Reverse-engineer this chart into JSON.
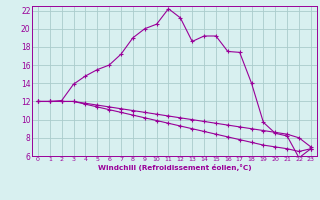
{
  "xlabel": "Windchill (Refroidissement éolien,°C)",
  "bg_color": "#d8f0f0",
  "line_color": "#990099",
  "grid_color": "#aacccc",
  "xlim": [
    -0.5,
    23.5
  ],
  "ylim": [
    6,
    22.5
  ],
  "yticks": [
    6,
    8,
    10,
    12,
    14,
    16,
    18,
    20,
    22
  ],
  "xticks": [
    0,
    1,
    2,
    3,
    4,
    5,
    6,
    7,
    8,
    9,
    10,
    11,
    12,
    13,
    14,
    15,
    16,
    17,
    18,
    19,
    20,
    21,
    22,
    23
  ],
  "curve1_x": [
    0,
    1,
    2,
    3,
    4,
    5,
    6,
    7,
    8,
    9,
    10,
    11,
    12,
    13,
    14,
    15,
    16,
    17,
    18,
    19,
    20,
    21,
    22,
    23
  ],
  "curve1_y": [
    12.0,
    12.0,
    12.1,
    13.9,
    14.8,
    15.5,
    16.0,
    17.2,
    19.0,
    20.0,
    20.5,
    22.2,
    21.2,
    18.6,
    19.2,
    19.2,
    17.5,
    17.4,
    14.0,
    9.7,
    8.5,
    8.2,
    5.8,
    6.8
  ],
  "curve2_x": [
    0,
    1,
    2,
    3,
    4,
    5,
    6,
    7,
    8,
    9,
    10,
    11,
    12,
    13,
    14,
    15,
    16,
    17,
    18,
    19,
    20,
    21,
    22,
    23
  ],
  "curve2_y": [
    12.0,
    12.0,
    12.0,
    12.0,
    11.8,
    11.6,
    11.4,
    11.2,
    11.0,
    10.8,
    10.6,
    10.4,
    10.2,
    10.0,
    9.8,
    9.6,
    9.4,
    9.2,
    9.0,
    8.8,
    8.6,
    8.4,
    8.0,
    7.0
  ],
  "curve3_x": [
    0,
    1,
    2,
    3,
    4,
    5,
    6,
    7,
    8,
    9,
    10,
    11,
    12,
    13,
    14,
    15,
    16,
    17,
    18,
    19,
    20,
    21,
    22,
    23
  ],
  "curve3_y": [
    12.0,
    12.0,
    12.0,
    12.0,
    11.7,
    11.4,
    11.1,
    10.8,
    10.5,
    10.2,
    9.9,
    9.6,
    9.3,
    9.0,
    8.7,
    8.4,
    8.1,
    7.8,
    7.5,
    7.2,
    7.0,
    6.8,
    6.5,
    6.8
  ]
}
